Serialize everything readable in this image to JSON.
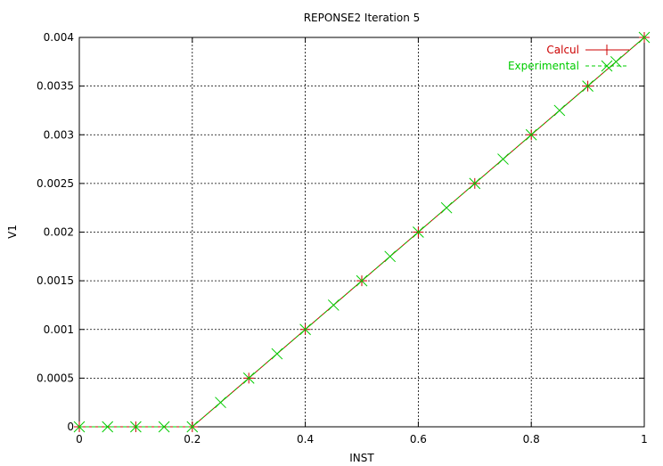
{
  "chart_data": {
    "type": "line",
    "title": "REPONSE2  Iteration 5",
    "xlabel": "INST",
    "ylabel": "V1",
    "xlim": [
      0,
      1
    ],
    "ylim": [
      0,
      0.004
    ],
    "x_ticks": [
      0,
      0.2,
      0.4,
      0.6,
      0.8,
      1
    ],
    "x_tick_labels": [
      "0",
      "0.2",
      "0.4",
      "0.6",
      "0.8",
      "1"
    ],
    "y_ticks": [
      0,
      0.0005,
      0.001,
      0.0015,
      0.002,
      0.0025,
      0.003,
      0.0035,
      0.004
    ],
    "y_tick_labels": [
      "0",
      "0.0005",
      "0.001",
      "0.0015",
      "0.002",
      "0.0025",
      "0.003",
      "0.0035",
      "0.004"
    ],
    "grid": true,
    "legend_position": "top-right",
    "series": [
      {
        "name": "Calcul",
        "color": "#cc0000",
        "line_style": "solid",
        "marker": "plus",
        "x": [
          0,
          0.1,
          0.2,
          0.3,
          0.4,
          0.5,
          0.6,
          0.7,
          0.8,
          0.9,
          1.0
        ],
        "y": [
          0,
          0,
          0,
          0.0005,
          0.001,
          0.0015,
          0.002,
          0.0025,
          0.003,
          0.0035,
          0.004
        ]
      },
      {
        "name": "Experimental",
        "color": "#00cc00",
        "line_style": "dashed",
        "marker": "cross",
        "x": [
          0,
          0.05,
          0.1,
          0.15,
          0.2,
          0.25,
          0.3,
          0.35,
          0.4,
          0.45,
          0.5,
          0.55,
          0.6,
          0.65,
          0.7,
          0.75,
          0.8,
          0.85,
          0.9,
          0.95,
          1.0
        ],
        "y": [
          0,
          0,
          0,
          0,
          0,
          0.00025,
          0.0005,
          0.00075,
          0.001,
          0.00125,
          0.0015,
          0.00175,
          0.002,
          0.00225,
          0.0025,
          0.00275,
          0.003,
          0.00325,
          0.0035,
          0.00375,
          0.004
        ]
      }
    ]
  }
}
